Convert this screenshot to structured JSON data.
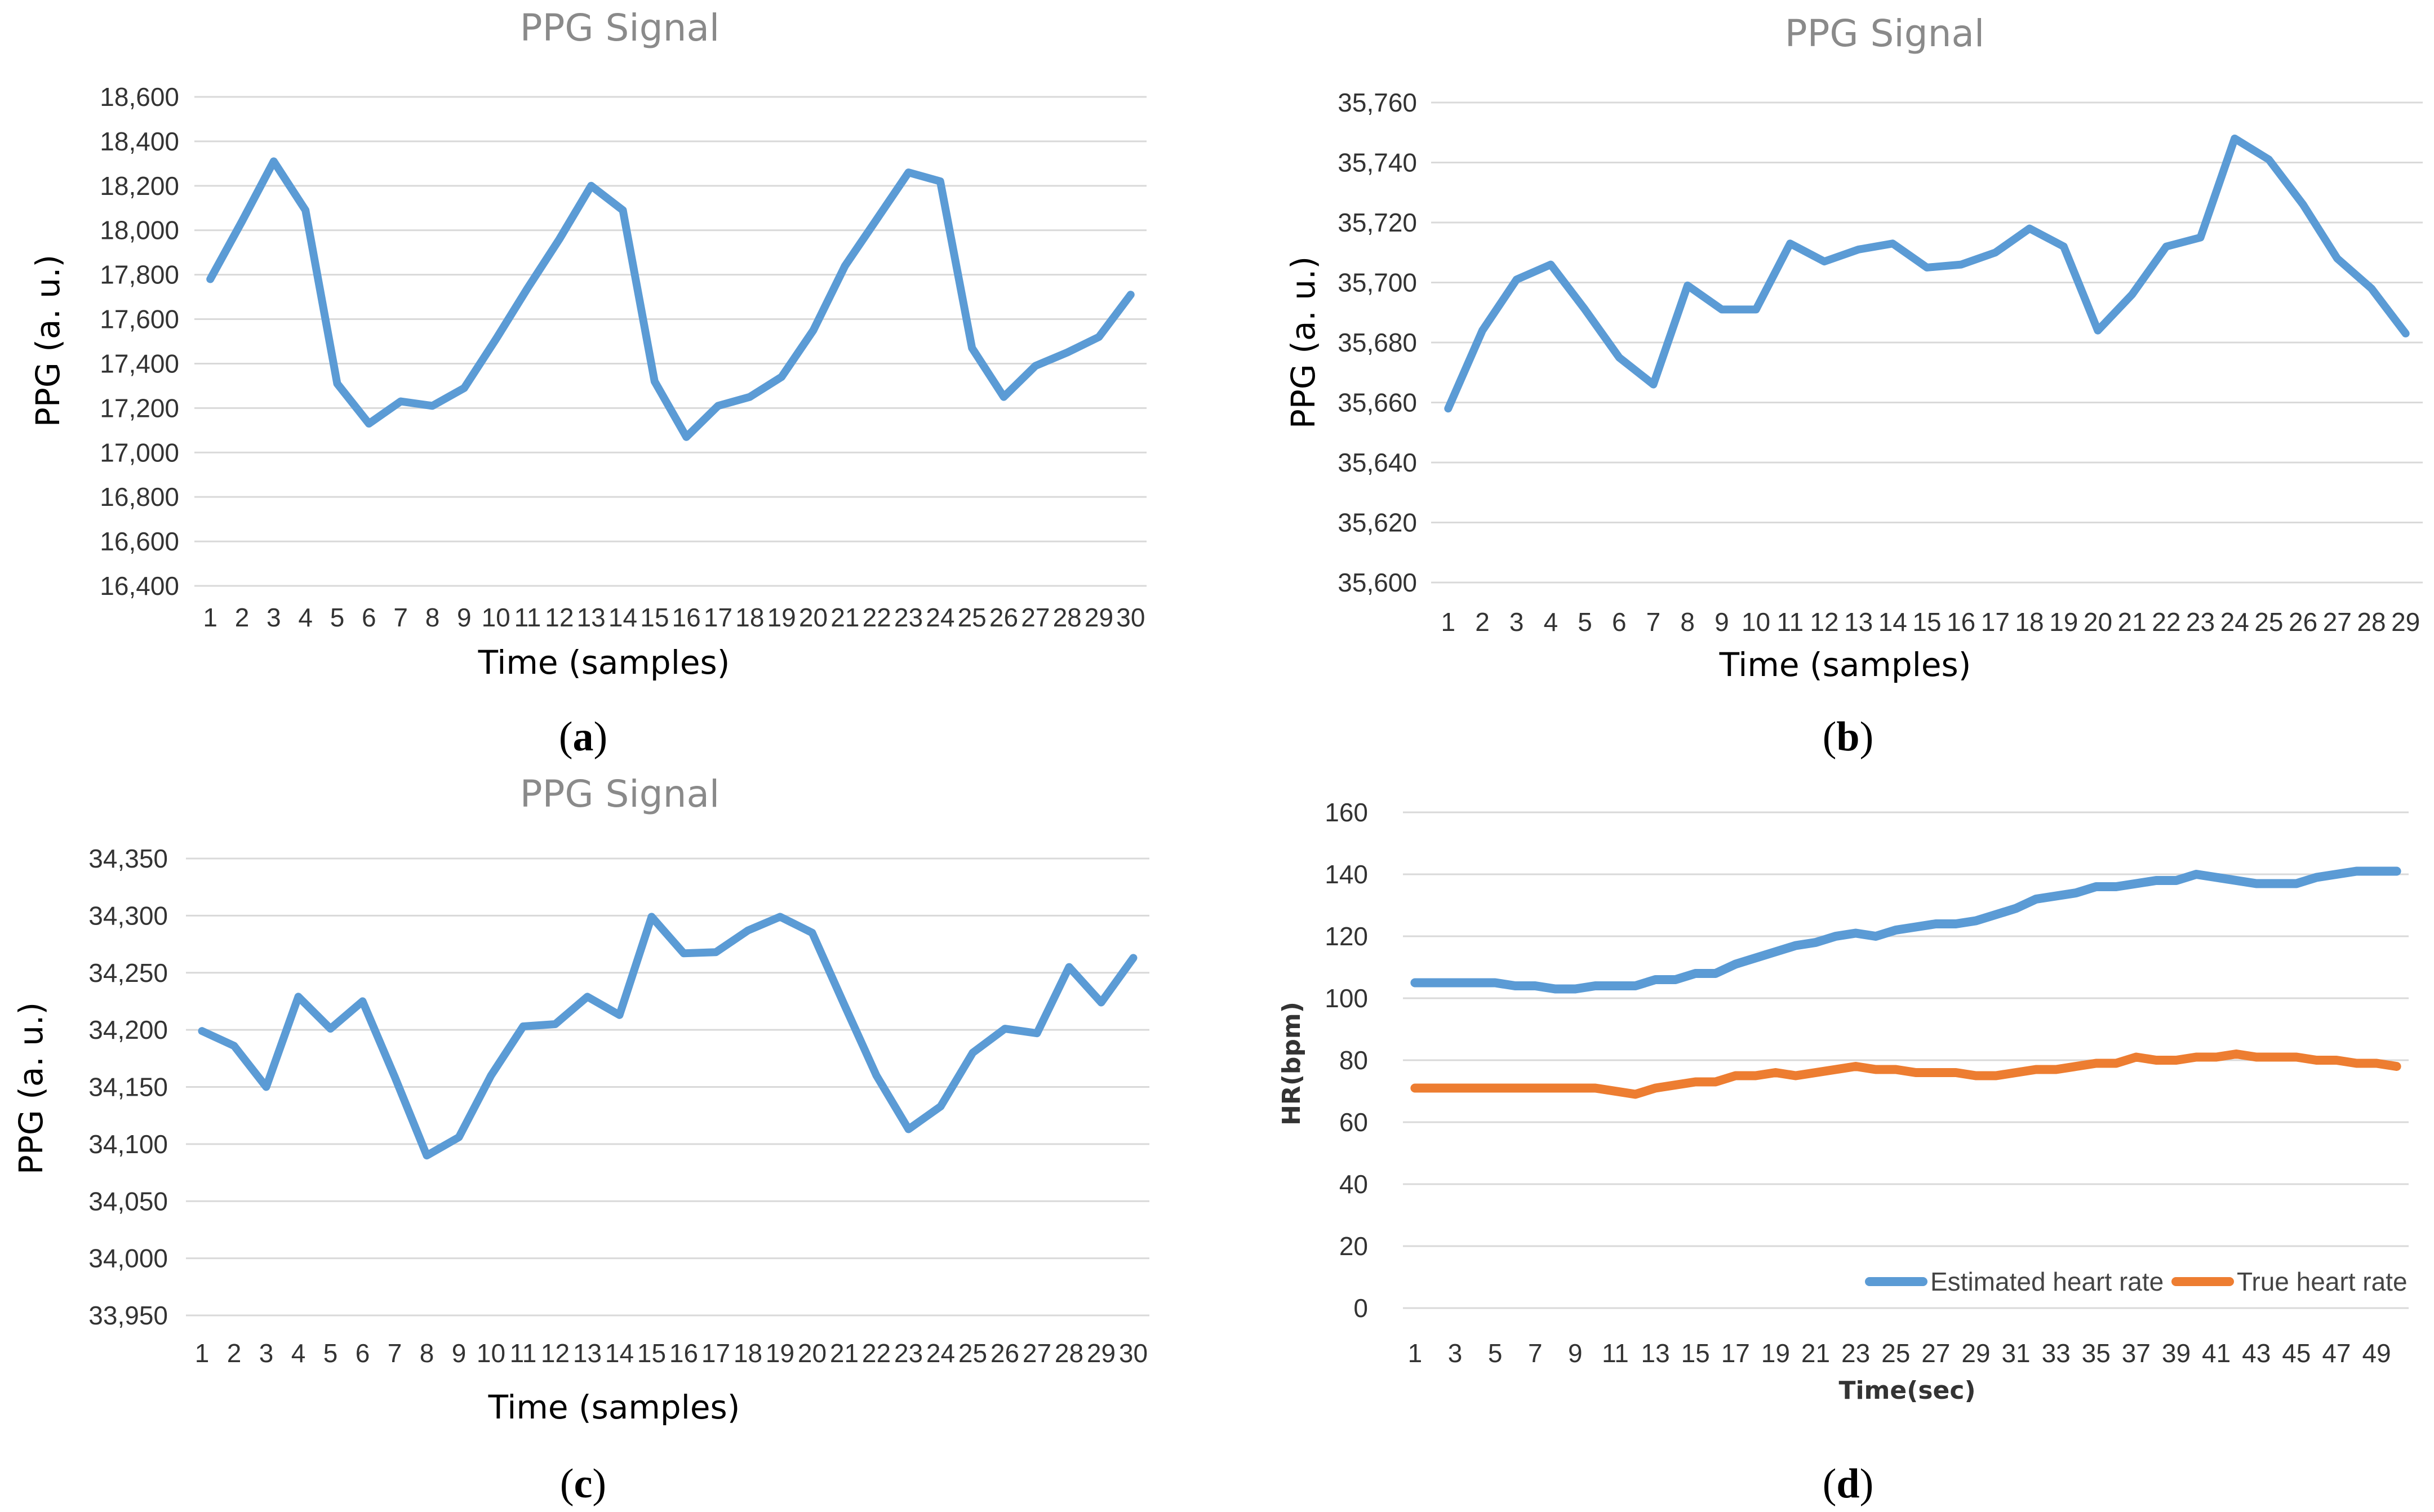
{
  "chart_data": [
    {
      "id": "a",
      "panel_label": "a",
      "type": "line",
      "title": "PPG Signal",
      "xlabel": "Time (samples)",
      "ylabel": "PPG (a. u.)",
      "ylim": [
        16400,
        18600
      ],
      "y_ticks": [
        16400,
        16600,
        16800,
        17000,
        17200,
        17400,
        17600,
        17800,
        18000,
        18200,
        18400,
        18600
      ],
      "y_tick_labels": [
        "16,400",
        "16,600",
        "16,800",
        "17,000",
        "17,200",
        "17,400",
        "17,600",
        "17,800",
        "18,000",
        "18,200",
        "18,400",
        "18,600"
      ],
      "categories": [
        "1",
        "2",
        "3",
        "4",
        "5",
        "6",
        "7",
        "8",
        "9",
        "10",
        "11",
        "12",
        "13",
        "14",
        "15",
        "16",
        "17",
        "18",
        "19",
        "20",
        "21",
        "22",
        "23",
        "24",
        "25",
        "26",
        "27",
        "28",
        "29",
        "30"
      ],
      "series": [
        {
          "name": "PPG",
          "color": "#5b9bd5",
          "values": [
            17780,
            18040,
            18310,
            18090,
            17310,
            17130,
            17230,
            17210,
            17290,
            17510,
            17740,
            17960,
            18200,
            18090,
            17320,
            17070,
            17210,
            17250,
            17340,
            17550,
            17840,
            18050,
            18260,
            18220,
            17470,
            17250,
            17390,
            17450,
            17520,
            17710
          ]
        }
      ]
    },
    {
      "id": "b",
      "panel_label": "b",
      "type": "line",
      "title": "PPG Signal",
      "xlabel": "Time (samples)",
      "ylabel": "PPG (a. u.)",
      "ylim": [
        35600,
        35760
      ],
      "y_ticks": [
        35600,
        35620,
        35640,
        35660,
        35680,
        35700,
        35720,
        35740,
        35760
      ],
      "y_tick_labels": [
        "35,600",
        "35,620",
        "35,640",
        "35,660",
        "35,680",
        "35,700",
        "35,720",
        "35,740",
        "35,760"
      ],
      "categories": [
        "1",
        "2",
        "3",
        "4",
        "5",
        "6",
        "7",
        "8",
        "9",
        "10",
        "11",
        "12",
        "13",
        "14",
        "15",
        "16",
        "17",
        "18",
        "19",
        "20",
        "21",
        "22",
        "23",
        "24",
        "25",
        "26",
        "27",
        "28",
        "29"
      ],
      "series": [
        {
          "name": "PPG",
          "color": "#5b9bd5",
          "values": [
            35658,
            35684,
            35701,
            35706,
            35691,
            35675,
            35666,
            35699,
            35691,
            35691,
            35713,
            35707,
            35711,
            35713,
            35705,
            35706,
            35710,
            35718,
            35712,
            35684,
            35696,
            35712,
            35715,
            35748,
            35741,
            35726,
            35708,
            35698,
            35683
          ]
        }
      ]
    },
    {
      "id": "c",
      "panel_label": "c",
      "type": "line",
      "title": "PPG Signal",
      "xlabel": "Time (samples)",
      "ylabel": "PPG (a. u.)",
      "ylim": [
        33950,
        34350
      ],
      "y_ticks": [
        33950,
        34000,
        34050,
        34100,
        34150,
        34200,
        34250,
        34300,
        34350
      ],
      "y_tick_labels": [
        "33,950",
        "34,000",
        "34,050",
        "34,100",
        "34,150",
        "34,200",
        "34,250",
        "34,300",
        "34,350"
      ],
      "categories": [
        "1",
        "2",
        "3",
        "4",
        "5",
        "6",
        "7",
        "8",
        "9",
        "10",
        "11",
        "12",
        "13",
        "14",
        "15",
        "16",
        "17",
        "18",
        "19",
        "20",
        "21",
        "22",
        "23",
        "24",
        "25",
        "26",
        "27",
        "28",
        "29",
        "30"
      ],
      "series": [
        {
          "name": "PPG",
          "color": "#5b9bd5",
          "values": [
            34199,
            34186,
            34150,
            34229,
            34201,
            34225,
            34159,
            34090,
            34106,
            34160,
            34203,
            34205,
            34229,
            34213,
            34299,
            34267,
            34268,
            34287,
            34299,
            34285,
            34222,
            34160,
            34113,
            34133,
            34180,
            34201,
            34197,
            34255,
            34224,
            34263
          ]
        }
      ]
    },
    {
      "id": "d",
      "panel_label": "d",
      "type": "line",
      "title": "",
      "xlabel": "Time(sec)",
      "ylabel": "HR(bpm)",
      "ylim": [
        0,
        160
      ],
      "y_ticks": [
        0,
        20,
        40,
        60,
        80,
        100,
        120,
        140,
        160
      ],
      "y_tick_labels": [
        "0",
        "20",
        "40",
        "60",
        "80",
        "100",
        "120",
        "140",
        "160"
      ],
      "x": [
        1,
        2,
        3,
        4,
        5,
        6,
        7,
        8,
        9,
        10,
        11,
        12,
        13,
        14,
        15,
        16,
        17,
        18,
        19,
        20,
        21,
        22,
        23,
        24,
        25,
        26,
        27,
        28,
        29,
        30,
        31,
        32,
        33,
        34,
        35,
        36,
        37,
        38,
        39,
        40,
        41,
        42,
        43,
        44,
        45,
        46,
        47,
        48,
        49,
        50
      ],
      "x_tick_labels": [
        "1",
        "3",
        "5",
        "7",
        "9",
        "11",
        "13",
        "15",
        "17",
        "19",
        "21",
        "23",
        "25",
        "27",
        "29",
        "31",
        "33",
        "35",
        "37",
        "39",
        "41",
        "43",
        "45",
        "47",
        "49"
      ],
      "legend": [
        "Estimated heart rate",
        "True heart rate"
      ],
      "legend_position": "bottom-right",
      "series": [
        {
          "name": "Estimated heart rate",
          "color": "#5b9bd5",
          "values": [
            105,
            105,
            105,
            105,
            105,
            104,
            104,
            103,
            103,
            104,
            104,
            104,
            106,
            106,
            108,
            108,
            111,
            113,
            115,
            117,
            118,
            120,
            121,
            120,
            122,
            123,
            124,
            124,
            125,
            127,
            129,
            132,
            133,
            134,
            136,
            136,
            137,
            138,
            138,
            140,
            139,
            138,
            137,
            137,
            137,
            139,
            140,
            141,
            141,
            141
          ]
        },
        {
          "name": "True heart rate",
          "color": "#ed7d31",
          "values": [
            71,
            71,
            71,
            71,
            71,
            71,
            71,
            71,
            71,
            71,
            70,
            69,
            71,
            72,
            73,
            73,
            75,
            75,
            76,
            75,
            76,
            77,
            78,
            77,
            77,
            76,
            76,
            76,
            75,
            75,
            76,
            77,
            77,
            78,
            79,
            79,
            81,
            80,
            80,
            81,
            81,
            82,
            81,
            81,
            81,
            80,
            80,
            79,
            79,
            78
          ]
        }
      ]
    }
  ]
}
